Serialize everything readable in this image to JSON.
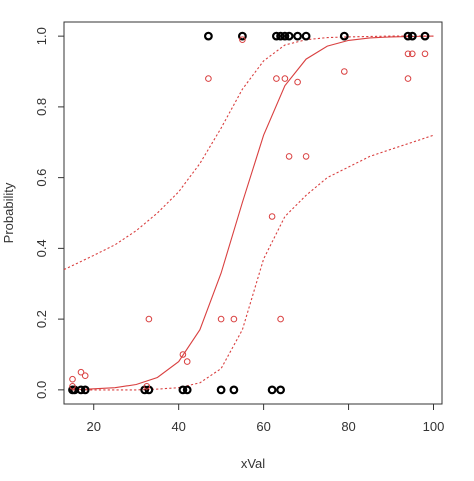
{
  "chart_data": {
    "type": "scatter",
    "title": "",
    "xlabel": "xVal",
    "ylabel": "Probability",
    "xlim": [
      13,
      102
    ],
    "ylim": [
      -0.04,
      1.04
    ],
    "x_ticks": [
      20,
      40,
      60,
      80,
      100
    ],
    "y_ticks": [
      0.0,
      0.2,
      0.4,
      0.6,
      0.8,
      1.0
    ],
    "x_tick_labels": [
      "20",
      "40",
      "60",
      "80",
      "100"
    ],
    "y_tick_labels": [
      "0.0",
      "0.2",
      "0.4",
      "0.6",
      "0.8",
      "1.0"
    ],
    "grid": false,
    "legend": "none",
    "colors": {
      "observed": "#000000",
      "estimated": "#d94040",
      "fit": "#d94040",
      "ci": "#d94040",
      "frame": "#333333"
    },
    "series": [
      {
        "marker": "open-circle-bold",
        "color": "#000000",
        "x": [
          15,
          15.5,
          17,
          18,
          32,
          33,
          41,
          42,
          47,
          50,
          53,
          55,
          62,
          63,
          64,
          64,
          65,
          66,
          68,
          70,
          79,
          94,
          95,
          98
        ],
        "y": [
          0,
          0,
          0,
          0,
          0,
          0,
          0,
          0,
          1,
          0,
          0,
          1,
          0,
          1,
          0,
          1,
          1,
          1,
          1,
          1,
          1,
          1,
          1,
          1
        ]
      },
      {
        "marker": "open-circle",
        "color": "#d94040",
        "x": [
          15,
          15,
          17,
          18,
          32.5,
          33,
          41,
          42,
          47,
          50,
          53,
          55,
          62,
          63,
          64,
          65,
          66,
          68,
          70,
          79,
          94,
          94,
          95,
          98
        ],
        "y": [
          0.01,
          0.03,
          0.05,
          0.04,
          0.01,
          0.2,
          0.1,
          0.08,
          0.88,
          0.2,
          0.2,
          0.99,
          0.49,
          0.88,
          0.2,
          0.88,
          0.66,
          0.87,
          0.66,
          0.9,
          0.88,
          0.95,
          0.95,
          0.95
        ]
      },
      {
        "line": "solid",
        "color": "#d94040",
        "x": [
          15,
          20,
          25,
          30,
          35,
          40,
          45,
          50,
          55,
          60,
          65,
          70,
          75,
          80,
          85,
          90,
          95,
          100
        ],
        "y": [
          0.0,
          0.003,
          0.006,
          0.015,
          0.035,
          0.08,
          0.17,
          0.33,
          0.53,
          0.72,
          0.86,
          0.935,
          0.972,
          0.988,
          0.995,
          0.998,
          0.999,
          1.0
        ]
      },
      {
        "line": "dotted",
        "color": "#d94040",
        "x": [
          13,
          20,
          25,
          30,
          35,
          40,
          45,
          50,
          55,
          60,
          65,
          70,
          75,
          80,
          85,
          90,
          95,
          100
        ],
        "y": [
          0.34,
          0.38,
          0.41,
          0.45,
          0.5,
          0.56,
          0.64,
          0.74,
          0.85,
          0.93,
          0.975,
          0.99,
          0.996,
          0.998,
          0.999,
          1.0,
          1.0,
          1.0
        ]
      },
      {
        "line": "dotted",
        "color": "#d94040",
        "x": [
          15,
          20,
          25,
          30,
          35,
          40,
          45,
          50,
          55,
          60,
          65,
          70,
          75,
          80,
          85,
          90,
          95,
          100
        ],
        "y": [
          0.0,
          0.0,
          0.0,
          0.0,
          0.002,
          0.006,
          0.02,
          0.06,
          0.17,
          0.37,
          0.49,
          0.55,
          0.6,
          0.63,
          0.66,
          0.68,
          0.7,
          0.72
        ]
      }
    ]
  }
}
